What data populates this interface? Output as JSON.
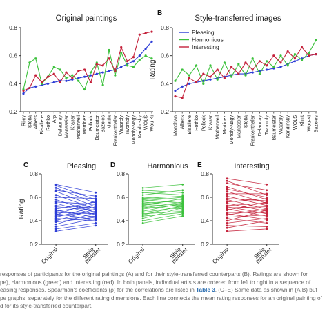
{
  "colors": {
    "pleasing": "#2b3bd6",
    "harmonious": "#3cc13c",
    "interesting": "#c4213a",
    "axis": "#333333"
  },
  "panels": {
    "A": {
      "letter": "",
      "title": "Original paintings"
    },
    "B": {
      "letter": "B",
      "title": "Style-transferred images"
    },
    "C": {
      "letter": "C",
      "title": "Pleasing"
    },
    "D": {
      "letter": "D",
      "title": "Harmonious"
    },
    "E": {
      "letter": "E",
      "title": "Interesting"
    }
  },
  "chart_data": [
    {
      "id": "A",
      "type": "line",
      "title": "Original paintings",
      "ylabel": "",
      "ylim": [
        0.2,
        0.8
      ],
      "yticks": [
        "0.2",
        "0.4",
        "0.6",
        "0.8"
      ],
      "categories": [
        "Riley",
        "Stella",
        "Albers",
        "Bisaliere",
        "Rothko",
        "Arp",
        "Delaunay",
        "Manessier",
        "Kraser",
        "Motherwell",
        "Martinez",
        "Pollock",
        "Baumeister",
        "Bazoles",
        "Mattia",
        "Frankenthaler",
        "Vasarely",
        "Twombly",
        "Moholy-Nagy",
        "Kandinsky",
        "WOLS",
        "Wou-Ki"
      ],
      "series": [
        {
          "name": "Pleasing",
          "color": "pleasing",
          "values": [
            0.33,
            0.37,
            0.38,
            0.39,
            0.4,
            0.41,
            0.42,
            0.42,
            0.43,
            0.44,
            0.45,
            0.46,
            0.47,
            0.48,
            0.49,
            0.5,
            0.52,
            0.54,
            0.56,
            0.6,
            0.65,
            0.7
          ]
        },
        {
          "name": "Harmonious",
          "color": "harmonious",
          "values": [
            0.36,
            0.55,
            0.58,
            0.4,
            0.45,
            0.52,
            0.5,
            0.44,
            0.46,
            0.42,
            0.36,
            0.48,
            0.55,
            0.39,
            0.64,
            0.46,
            0.62,
            0.53,
            0.52,
            0.57,
            0.6,
            0.58
          ]
        },
        {
          "name": "Interesting",
          "color": "interesting",
          "values": [
            0.35,
            0.37,
            0.46,
            0.41,
            0.45,
            0.47,
            0.41,
            0.48,
            0.44,
            0.49,
            0.5,
            0.41,
            0.54,
            0.53,
            0.58,
            0.49,
            0.66,
            0.56,
            0.59,
            0.75,
            0.76,
            0.77
          ]
        }
      ]
    },
    {
      "id": "B",
      "type": "line",
      "title": "Style-transferred images",
      "ylabel": "Rating",
      "ylim": [
        0.2,
        0.8
      ],
      "yticks": [
        "0.2",
        "0.4",
        "0.6",
        "0.8"
      ],
      "legend": "top-left",
      "categories": [
        "Mondrian",
        "Albers",
        "Bisaliere",
        "Rothko",
        "Pollock",
        "Kraser",
        "Motherwell",
        "Martinez",
        "Moholy-Nagy",
        "Manessier",
        "Stella",
        "Frankenthaler",
        "Delaunay",
        "Twombly",
        "Baumeister",
        "Vasarely",
        "Kandinsky",
        "WOLS",
        "Klimt",
        "Wou-Ki",
        "Bazoles"
      ],
      "series": [
        {
          "name": "Pleasing",
          "color": "pleasing",
          "values": [
            0.35,
            0.38,
            0.4,
            0.41,
            0.42,
            0.43,
            0.44,
            0.45,
            0.46,
            0.47,
            0.47,
            0.48,
            0.49,
            0.5,
            0.51,
            0.52,
            0.54,
            0.56,
            0.58,
            0.6,
            0.61
          ]
        },
        {
          "name": "Harmonious",
          "color": "harmonious",
          "values": [
            0.42,
            0.5,
            0.46,
            0.53,
            0.4,
            0.53,
            0.43,
            0.55,
            0.45,
            0.54,
            0.46,
            0.58,
            0.47,
            0.56,
            0.52,
            0.6,
            0.53,
            0.61,
            0.57,
            0.62,
            0.71
          ]
        },
        {
          "name": "Interesting",
          "color": "interesting",
          "values": [
            0.31,
            0.3,
            0.44,
            0.41,
            0.47,
            0.45,
            0.5,
            0.44,
            0.52,
            0.47,
            0.55,
            0.5,
            0.56,
            0.53,
            0.6,
            0.55,
            0.63,
            0.58,
            0.66,
            0.6,
            0.61
          ]
        }
      ]
    },
    {
      "id": "C",
      "type": "line",
      "title": "Pleasing",
      "ylabel": "Rating",
      "ylim": [
        0.2,
        0.8
      ],
      "yticks": [
        "0.2",
        "0.4",
        "0.6",
        "0.8"
      ],
      "categories": [
        "Original",
        "Style transfer"
      ],
      "color": "pleasing",
      "pairs": [
        [
          0.71,
          0.64
        ],
        [
          0.7,
          0.58
        ],
        [
          0.68,
          0.55
        ],
        [
          0.66,
          0.61
        ],
        [
          0.65,
          0.52
        ],
        [
          0.62,
          0.5
        ],
        [
          0.6,
          0.59
        ],
        [
          0.58,
          0.47
        ],
        [
          0.56,
          0.54
        ],
        [
          0.55,
          0.45
        ],
        [
          0.53,
          0.51
        ],
        [
          0.52,
          0.49
        ],
        [
          0.5,
          0.56
        ],
        [
          0.49,
          0.43
        ],
        [
          0.48,
          0.53
        ],
        [
          0.47,
          0.46
        ],
        [
          0.46,
          0.41
        ],
        [
          0.45,
          0.57
        ],
        [
          0.44,
          0.48
        ],
        [
          0.43,
          0.52
        ],
        [
          0.42,
          0.4
        ],
        [
          0.41,
          0.44
        ],
        [
          0.4,
          0.5
        ],
        [
          0.39,
          0.43
        ],
        [
          0.37,
          0.47
        ],
        [
          0.35,
          0.42
        ],
        [
          0.33,
          0.38
        ],
        [
          0.31,
          0.36
        ]
      ]
    },
    {
      "id": "D",
      "type": "line",
      "title": "Harmonious",
      "ylabel": "",
      "ylim": [
        0.2,
        0.8
      ],
      "yticks": [
        "0.2",
        "0.4",
        "0.6",
        "0.8"
      ],
      "categories": [
        "Original",
        "Style transfer"
      ],
      "color": "harmonious",
      "pairs": [
        [
          0.68,
          0.71
        ],
        [
          0.66,
          0.64
        ],
        [
          0.64,
          0.62
        ],
        [
          0.62,
          0.66
        ],
        [
          0.6,
          0.58
        ],
        [
          0.59,
          0.61
        ],
        [
          0.58,
          0.55
        ],
        [
          0.57,
          0.6
        ],
        [
          0.56,
          0.53
        ],
        [
          0.55,
          0.57
        ],
        [
          0.54,
          0.52
        ],
        [
          0.53,
          0.59
        ],
        [
          0.52,
          0.5
        ],
        [
          0.51,
          0.56
        ],
        [
          0.5,
          0.54
        ],
        [
          0.49,
          0.49
        ],
        [
          0.48,
          0.55
        ],
        [
          0.47,
          0.52
        ],
        [
          0.46,
          0.48
        ],
        [
          0.45,
          0.53
        ],
        [
          0.44,
          0.47
        ],
        [
          0.42,
          0.51
        ],
        [
          0.4,
          0.46
        ],
        [
          0.38,
          0.44
        ]
      ]
    },
    {
      "id": "E",
      "type": "line",
      "title": "Interesting",
      "ylabel": "",
      "ylim": [
        0.2,
        0.8
      ],
      "yticks": [
        "0.2",
        "0.4",
        "0.6",
        "0.8"
      ],
      "categories": [
        "Original",
        "Style transfer"
      ],
      "color": "interesting",
      "pairs": [
        [
          0.76,
          0.71
        ],
        [
          0.74,
          0.62
        ],
        [
          0.72,
          0.66
        ],
        [
          0.69,
          0.58
        ],
        [
          0.67,
          0.6
        ],
        [
          0.65,
          0.55
        ],
        [
          0.63,
          0.63
        ],
        [
          0.61,
          0.53
        ],
        [
          0.59,
          0.57
        ],
        [
          0.58,
          0.5
        ],
        [
          0.56,
          0.59
        ],
        [
          0.55,
          0.48
        ],
        [
          0.53,
          0.55
        ],
        [
          0.52,
          0.46
        ],
        [
          0.51,
          0.52
        ],
        [
          0.5,
          0.44
        ],
        [
          0.49,
          0.56
        ],
        [
          0.47,
          0.47
        ],
        [
          0.46,
          0.41
        ],
        [
          0.45,
          0.5
        ],
        [
          0.43,
          0.45
        ],
        [
          0.42,
          0.38
        ],
        [
          0.4,
          0.49
        ],
        [
          0.38,
          0.42
        ],
        [
          0.36,
          0.35
        ],
        [
          0.34,
          0.4
        ],
        [
          0.31,
          0.33
        ]
      ]
    }
  ],
  "caption": {
    "line1": "responses of participants for the original paintings (A) and for their style-transferred counterparts (B). Ratings are shown for",
    "line2": "pe), Harmonious (green) and Interesting (red). In both panels, individual artists are ordered from left to right in a sequence of",
    "line3_before": "easing responses. Spearman's coefficients (ρ) for the correlations are listed in ",
    "line3_link": "Table 3",
    "line3_after": ". (C–E) Same data as shown in (A,B) but",
    "line4": "pe graphs, separately for the different rating dimensions. Each line connects the mean rating responses for an original painting of",
    "line5": "d for its style-transferred counterpart."
  }
}
